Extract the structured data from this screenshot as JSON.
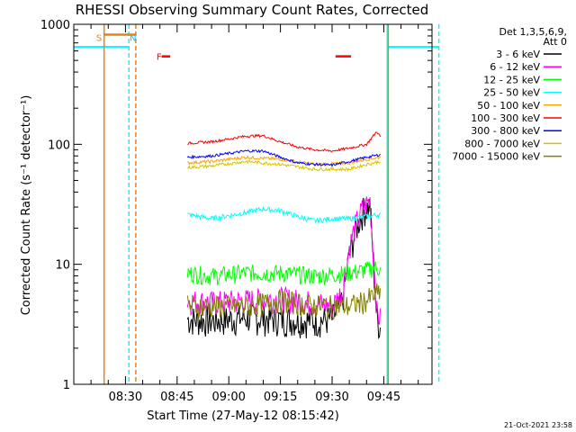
{
  "chart_data": {
    "type": "line",
    "title": "RHESSI Observing Summary Count Rates, Corrected",
    "xlabel": "Start Time (27-May-12 08:15:42)",
    "ylabel": "Corrected Count Rate (s⁻¹ detector⁻¹)",
    "yscale": "log",
    "ylim": [
      1,
      1000
    ],
    "xlim_minutes_after_0815": [
      0,
      104
    ],
    "x_tick_labels": [
      "08:30",
      "08:45",
      "09:00",
      "09:15",
      "09:30",
      "09:45"
    ],
    "x_tick_minutes_after_0815": [
      15,
      30,
      45,
      60,
      75,
      90
    ],
    "y_tick_labels": [
      "1",
      "10",
      "100",
      "1000"
    ],
    "y_tick_values": [
      1,
      10,
      100,
      1000
    ],
    "legend_title": "Det 1,3,5,6,9,",
    "legend_subtitle": "Att 0",
    "grid": false,
    "legend_position": "top-right",
    "series": [
      {
        "name": "3 - 6 keV",
        "color": "#000000",
        "x": [
          33,
          40,
          50,
          60,
          70,
          75,
          78,
          80,
          82,
          84,
          86,
          88,
          89
        ],
        "values": [
          3.5,
          3.4,
          3.6,
          3.5,
          3.4,
          3.5,
          5,
          12,
          20,
          28,
          31,
          3.5,
          3
        ]
      },
      {
        "name": "6 - 12 keV",
        "color": "#ff00ff",
        "x": [
          33,
          40,
          50,
          60,
          70,
          75,
          78,
          80,
          82,
          84,
          86,
          88,
          89
        ],
        "values": [
          5,
          4.8,
          5,
          5.2,
          4.8,
          4.5,
          6,
          14,
          22,
          30,
          34,
          4,
          3.5
        ]
      },
      {
        "name": "12 - 25 keV",
        "color": "#00ff00",
        "x": [
          33,
          40,
          50,
          60,
          70,
          80,
          85,
          88,
          89
        ],
        "values": [
          8.5,
          8,
          8.5,
          8.5,
          8,
          8.5,
          9,
          9.5,
          9
        ]
      },
      {
        "name": "25 - 50 keV",
        "color": "#00ffff",
        "x": [
          33,
          40,
          50,
          55,
          60,
          65,
          70,
          75,
          80,
          85,
          89
        ],
        "values": [
          26,
          24,
          27,
          29,
          28,
          25,
          23,
          24,
          24,
          25,
          26
        ]
      },
      {
        "name": "50 - 100 keV",
        "color": "#ffa500",
        "x": [
          33,
          40,
          50,
          60,
          70,
          80,
          85,
          89
        ],
        "values": [
          70,
          72,
          78,
          75,
          68,
          70,
          75,
          78
        ]
      },
      {
        "name": "100 - 300 keV",
        "color": "#ff0000",
        "x": [
          33,
          40,
          50,
          55,
          60,
          65,
          70,
          75,
          80,
          85,
          88,
          89
        ],
        "values": [
          102,
          105,
          117,
          118,
          105,
          95,
          90,
          88,
          93,
          100,
          128,
          115
        ]
      },
      {
        "name": "300 - 800 keV",
        "color": "#0000ff",
        "x": [
          33,
          40,
          50,
          55,
          60,
          65,
          70,
          75,
          80,
          85,
          89
        ],
        "values": [
          78,
          80,
          88,
          88,
          78,
          70,
          68,
          67,
          72,
          78,
          82
        ]
      },
      {
        "name": "800 - 7000 keV",
        "color": "#d4c400",
        "x": [
          33,
          40,
          50,
          60,
          70,
          80,
          85,
          89
        ],
        "values": [
          64,
          66,
          72,
          68,
          62,
          62,
          68,
          72
        ]
      },
      {
        "name": "7000 - 15000 keV",
        "color": "#808000",
        "x": [
          33,
          40,
          50,
          60,
          70,
          80,
          85,
          89
        ],
        "values": [
          4.5,
          4.5,
          4.5,
          5,
          4.5,
          4.5,
          5,
          6
        ]
      }
    ],
    "flags": [
      {
        "label": "S",
        "color": "#e8801a",
        "x": [
          8,
          18
        ]
      },
      {
        "label": "N",
        "color": "#00ccdd",
        "x": [
          16,
          16.5
        ]
      },
      {
        "label": "F",
        "color": "#ff0000",
        "x": [
          76,
          80
        ]
      }
    ],
    "timestamp": "21-Oct-2021 23:58"
  },
  "colors": {
    "axis": "#000000",
    "saa": "#00ffff",
    "night": "#e8801a",
    "flare": "#ff0000"
  }
}
